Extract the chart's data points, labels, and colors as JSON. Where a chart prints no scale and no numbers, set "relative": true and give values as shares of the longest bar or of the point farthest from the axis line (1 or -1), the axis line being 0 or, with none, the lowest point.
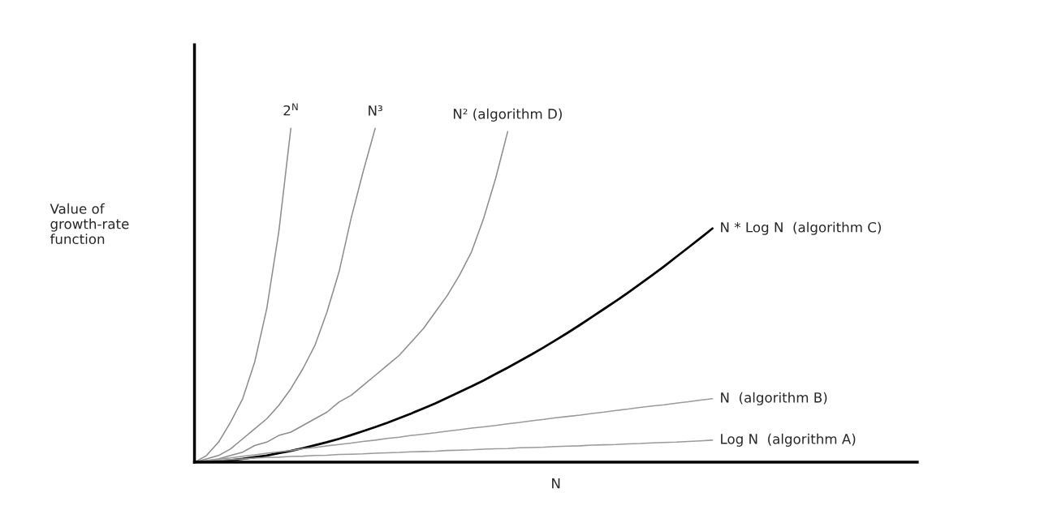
{
  "chart_data": {
    "type": "line",
    "relative": true,
    "xlabel": "N",
    "ylabel": "Value of\ngrowth-rate\nfunction",
    "legend": false,
    "marker": "none",
    "line_style": "solid",
    "categories": [
      null,
      null,
      null,
      null,
      null,
      null,
      null,
      null,
      null,
      null,
      null,
      null,
      null,
      null,
      null,
      null,
      null,
      null,
      null,
      null,
      null,
      null,
      null,
      null,
      null,
      null,
      null,
      null,
      null,
      null,
      null,
      null,
      null,
      null,
      null,
      null,
      null,
      null,
      null,
      null,
      null,
      null,
      null,
      null,
      null,
      null,
      null,
      null,
      null,
      null,
      null,
      null,
      null,
      null,
      null,
      null,
      null,
      null,
      null,
      null,
      null
    ],
    "series": [
      {
        "name": "2$^{N}$",
        "color": "#8c8c8c",
        "values": [
          0,
          0.02,
          0.06,
          0.12,
          0.19,
          0.3,
          0.46,
          0.69,
          1.0,
          null,
          null,
          null,
          null,
          null,
          null,
          null,
          null,
          null,
          null,
          null,
          null,
          null,
          null,
          null,
          null,
          null,
          null,
          null,
          null,
          null,
          null,
          null,
          null,
          null,
          null,
          null,
          null,
          null,
          null,
          null,
          null,
          null,
          null,
          null,
          null,
          null,
          null,
          null,
          null,
          null,
          null,
          null,
          null,
          null,
          null,
          null,
          null,
          null,
          null,
          null,
          null
        ]
      },
      {
        "name": "N³",
        "color": "#8c8c8c",
        "values": [
          0,
          0.01,
          0.02,
          0.04,
          0.07,
          0.1,
          0.13,
          0.17,
          0.22,
          0.28,
          0.35,
          0.45,
          0.57,
          0.73,
          0.87,
          1.0,
          null,
          null,
          null,
          null,
          null,
          null,
          null,
          null,
          null,
          null,
          null,
          null,
          null,
          null,
          null,
          null,
          null,
          null,
          null,
          null,
          null,
          null,
          null,
          null,
          null,
          null,
          null,
          null,
          null,
          null,
          null,
          null,
          null,
          null,
          null,
          null,
          null,
          null,
          null,
          null,
          null,
          null,
          null,
          null,
          null
        ]
      },
      {
        "name": "N² (algorithm D)",
        "color": "#8c8c8c",
        "values": [
          0,
          0.005,
          0.01,
          0.02,
          0.03,
          0.05,
          0.06,
          0.08,
          0.09,
          0.11,
          0.13,
          0.15,
          0.18,
          0.2,
          0.23,
          0.26,
          0.29,
          0.32,
          0.36,
          0.4,
          0.45,
          0.5,
          0.56,
          0.63,
          0.73,
          0.85,
          0.99,
          null,
          null,
          null,
          null,
          null,
          null,
          null,
          null,
          null,
          null,
          null,
          null,
          null,
          null,
          null,
          null,
          null,
          null,
          null,
          null,
          null,
          null,
          null,
          null,
          null,
          null,
          null,
          null,
          null,
          null,
          null,
          null,
          null,
          null
        ]
      },
      {
        "name": "N * Log N  (algorithm C)",
        "color": "#000000",
        "values": [
          0,
          0.001,
          0.003,
          0.006,
          0.01,
          0.015,
          0.02,
          0.027,
          0.034,
          0.042,
          0.051,
          0.06,
          0.07,
          0.081,
          0.093,
          0.105,
          0.118,
          0.132,
          0.146,
          0.161,
          0.176,
          0.193,
          0.21,
          0.227,
          0.245,
          0.264,
          0.283,
          0.303,
          0.323,
          0.344,
          0.366,
          0.388,
          0.411,
          0.435,
          0.459,
          0.483,
          0.508,
          0.534,
          0.56,
          0.587,
          0.615,
          0.643,
          0.671,
          0.7,
          null,
          null,
          null,
          null,
          null,
          null,
          null,
          null,
          null,
          null,
          null,
          null,
          null,
          null,
          null,
          null,
          null
        ]
      },
      {
        "name": "N  (algorithm B)",
        "color": "#9a9a9a",
        "values": [
          0,
          0.004,
          0.009,
          0.013,
          0.018,
          0.022,
          0.027,
          0.031,
          0.035,
          0.04,
          0.044,
          0.049,
          0.053,
          0.057,
          0.062,
          0.066,
          0.071,
          0.075,
          0.08,
          0.084,
          0.088,
          0.093,
          0.097,
          0.102,
          0.106,
          0.11,
          0.115,
          0.119,
          0.124,
          0.128,
          0.133,
          0.137,
          0.141,
          0.146,
          0.15,
          0.155,
          0.159,
          0.164,
          0.168,
          0.172,
          0.177,
          0.181,
          0.186,
          0.19,
          null,
          null,
          null,
          null,
          null,
          null,
          null,
          null,
          null,
          null,
          null,
          null,
          null,
          null,
          null,
          null,
          null
        ]
      },
      {
        "name": "Log N  (algorithm A)",
        "color": "#9a9a9a",
        "values": [
          0,
          0.004,
          0.006,
          0.008,
          0.01,
          0.012,
          0.014,
          0.015,
          0.017,
          0.018,
          0.02,
          0.021,
          0.023,
          0.024,
          0.025,
          0.027,
          0.028,
          0.029,
          0.031,
          0.032,
          0.033,
          0.035,
          0.036,
          0.037,
          0.039,
          0.04,
          0.041,
          0.043,
          0.044,
          0.045,
          0.047,
          0.048,
          0.049,
          0.051,
          0.052,
          0.053,
          0.055,
          0.056,
          0.058,
          0.059,
          0.06,
          0.062,
          0.064,
          0.066,
          null,
          null,
          null,
          null,
          null,
          null,
          null,
          null,
          null,
          null,
          null,
          null,
          null,
          null,
          null,
          null,
          null
        ]
      }
    ]
  }
}
